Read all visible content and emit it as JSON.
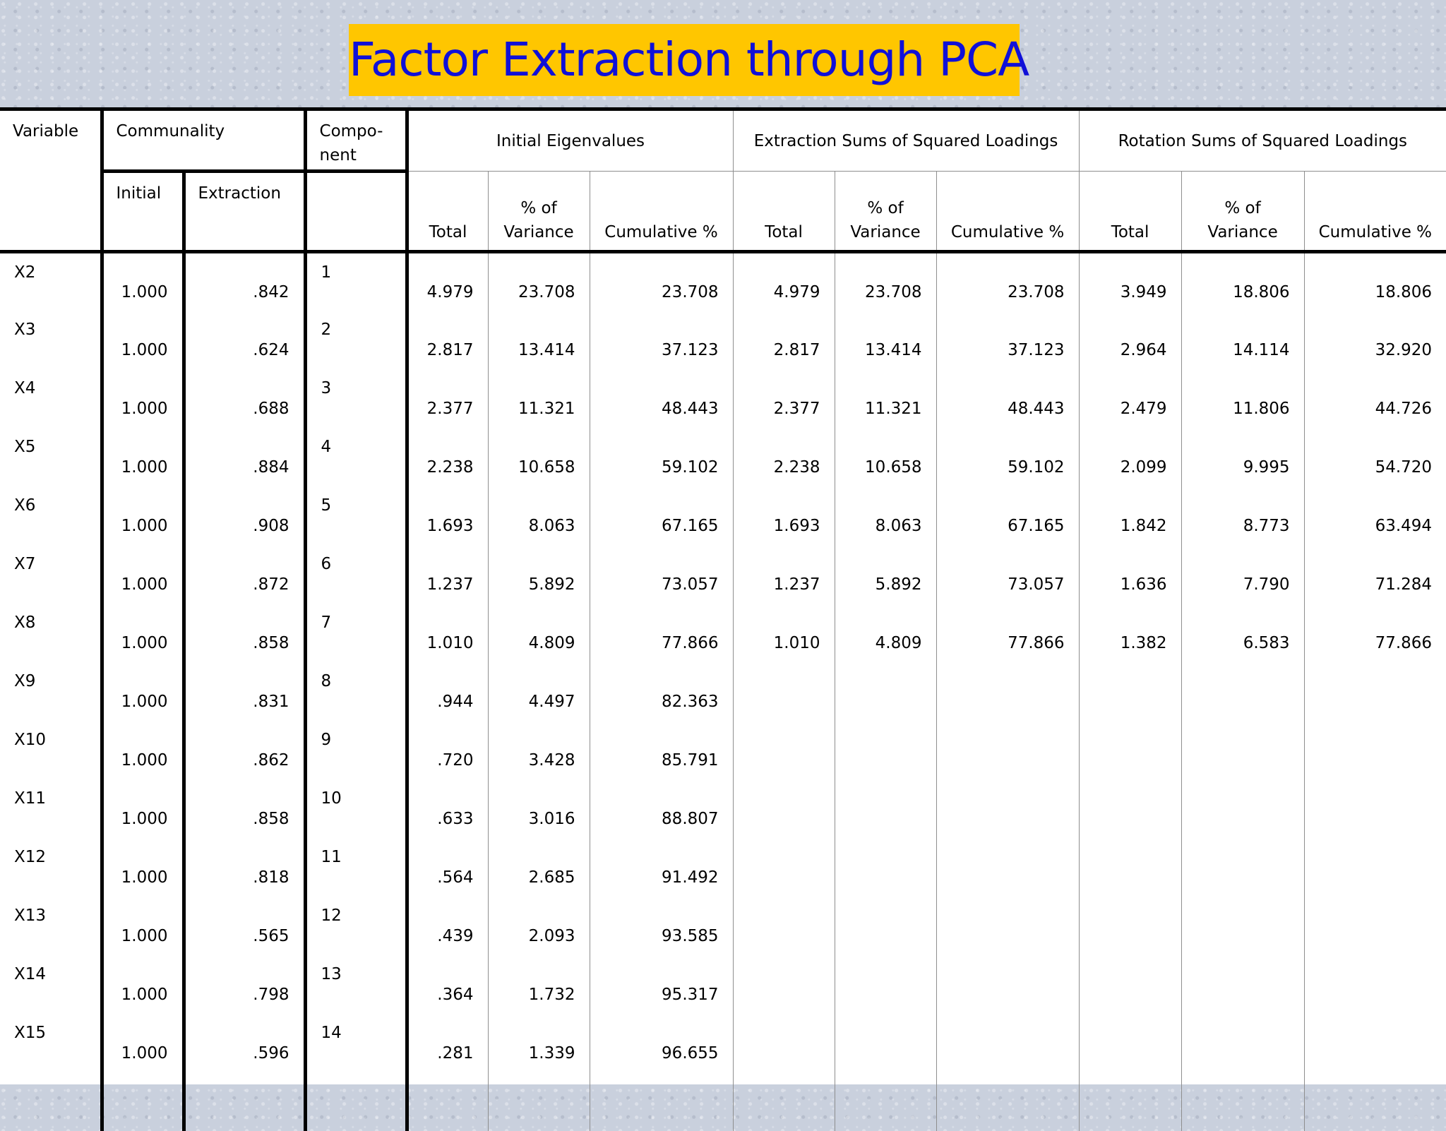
{
  "title": "Factor Extraction through PCA",
  "headers": {
    "variable": "Variable",
    "communality": "Communality",
    "component": "Compo-\nnent",
    "initial": "Initial",
    "extraction": "Extraction",
    "initial_eigenvalues": "Initial Eigenvalues",
    "extraction_ss": "Extraction Sums of Squared Loadings",
    "rotation_ss": "Rotation Sums of Squared Loadings",
    "total": "Total",
    "pct_variance": "% of\nVariance",
    "cumulative": "Cumulative %"
  },
  "rows": [
    {
      "variable": "X2",
      "initial": "1.000",
      "extraction": ".842",
      "component": "1",
      "ie_total": "4.979",
      "ie_pct": "23.708",
      "ie_cum": "23.708",
      "ex_total": "4.979",
      "ex_pct": "23.708",
      "ex_cum": "23.708",
      "ro_total": "3.949",
      "ro_pct": "18.806",
      "ro_cum": "18.806"
    },
    {
      "variable": "X3",
      "initial": "1.000",
      "extraction": ".624",
      "component": "2",
      "ie_total": "2.817",
      "ie_pct": "13.414",
      "ie_cum": "37.123",
      "ex_total": "2.817",
      "ex_pct": "13.414",
      "ex_cum": "37.123",
      "ro_total": "2.964",
      "ro_pct": "14.114",
      "ro_cum": "32.920"
    },
    {
      "variable": "X4",
      "initial": "1.000",
      "extraction": ".688",
      "component": "3",
      "ie_total": "2.377",
      "ie_pct": "11.321",
      "ie_cum": "48.443",
      "ex_total": "2.377",
      "ex_pct": "11.321",
      "ex_cum": "48.443",
      "ro_total": "2.479",
      "ro_pct": "11.806",
      "ro_cum": "44.726"
    },
    {
      "variable": "X5",
      "initial": "1.000",
      "extraction": ".884",
      "component": "4",
      "ie_total": "2.238",
      "ie_pct": "10.658",
      "ie_cum": "59.102",
      "ex_total": "2.238",
      "ex_pct": "10.658",
      "ex_cum": "59.102",
      "ro_total": "2.099",
      "ro_pct": "9.995",
      "ro_cum": "54.720"
    },
    {
      "variable": "X6",
      "initial": "1.000",
      "extraction": ".908",
      "component": "5",
      "ie_total": "1.693",
      "ie_pct": "8.063",
      "ie_cum": "67.165",
      "ex_total": "1.693",
      "ex_pct": "8.063",
      "ex_cum": "67.165",
      "ro_total": "1.842",
      "ro_pct": "8.773",
      "ro_cum": "63.494"
    },
    {
      "variable": "X7",
      "initial": "1.000",
      "extraction": ".872",
      "component": "6",
      "ie_total": "1.237",
      "ie_pct": "5.892",
      "ie_cum": "73.057",
      "ex_total": "1.237",
      "ex_pct": "5.892",
      "ex_cum": "73.057",
      "ro_total": "1.636",
      "ro_pct": "7.790",
      "ro_cum": "71.284"
    },
    {
      "variable": "X8",
      "initial": "1.000",
      "extraction": ".858",
      "component": "7",
      "ie_total": "1.010",
      "ie_pct": "4.809",
      "ie_cum": "77.866",
      "ex_total": "1.010",
      "ex_pct": "4.809",
      "ex_cum": "77.866",
      "ro_total": "1.382",
      "ro_pct": "6.583",
      "ro_cum": "77.866"
    },
    {
      "variable": "X9",
      "initial": "1.000",
      "extraction": ".831",
      "component": "8",
      "ie_total": ".944",
      "ie_pct": "4.497",
      "ie_cum": "82.363",
      "ex_total": "",
      "ex_pct": "",
      "ex_cum": "",
      "ro_total": "",
      "ro_pct": "",
      "ro_cum": ""
    },
    {
      "variable": "X10",
      "initial": "1.000",
      "extraction": ".862",
      "component": "9",
      "ie_total": ".720",
      "ie_pct": "3.428",
      "ie_cum": "85.791",
      "ex_total": "",
      "ex_pct": "",
      "ex_cum": "",
      "ro_total": "",
      "ro_pct": "",
      "ro_cum": ""
    },
    {
      "variable": "X11",
      "initial": "1.000",
      "extraction": ".858",
      "component": "10",
      "ie_total": ".633",
      "ie_pct": "3.016",
      "ie_cum": "88.807",
      "ex_total": "",
      "ex_pct": "",
      "ex_cum": "",
      "ro_total": "",
      "ro_pct": "",
      "ro_cum": ""
    },
    {
      "variable": "X12",
      "initial": "1.000",
      "extraction": ".818",
      "component": "11",
      "ie_total": ".564",
      "ie_pct": "2.685",
      "ie_cum": "91.492",
      "ex_total": "",
      "ex_pct": "",
      "ex_cum": "",
      "ro_total": "",
      "ro_pct": "",
      "ro_cum": ""
    },
    {
      "variable": "X13",
      "initial": "1.000",
      "extraction": ".565",
      "component": "12",
      "ie_total": ".439",
      "ie_pct": "2.093",
      "ie_cum": "93.585",
      "ex_total": "",
      "ex_pct": "",
      "ex_cum": "",
      "ro_total": "",
      "ro_pct": "",
      "ro_cum": ""
    },
    {
      "variable": "X14",
      "initial": "1.000",
      "extraction": ".798",
      "component": "13",
      "ie_total": ".364",
      "ie_pct": "1.732",
      "ie_cum": "95.317",
      "ex_total": "",
      "ex_pct": "",
      "ex_cum": "",
      "ro_total": "",
      "ro_pct": "",
      "ro_cum": ""
    },
    {
      "variable": "X15",
      "initial": "1.000",
      "extraction": ".596",
      "component": "14",
      "ie_total": ".281",
      "ie_pct": "1.339",
      "ie_cum": "96.655",
      "ex_total": "",
      "ex_pct": "",
      "ex_cum": "",
      "ro_total": "",
      "ro_pct": "",
      "ro_cum": ""
    }
  ]
}
